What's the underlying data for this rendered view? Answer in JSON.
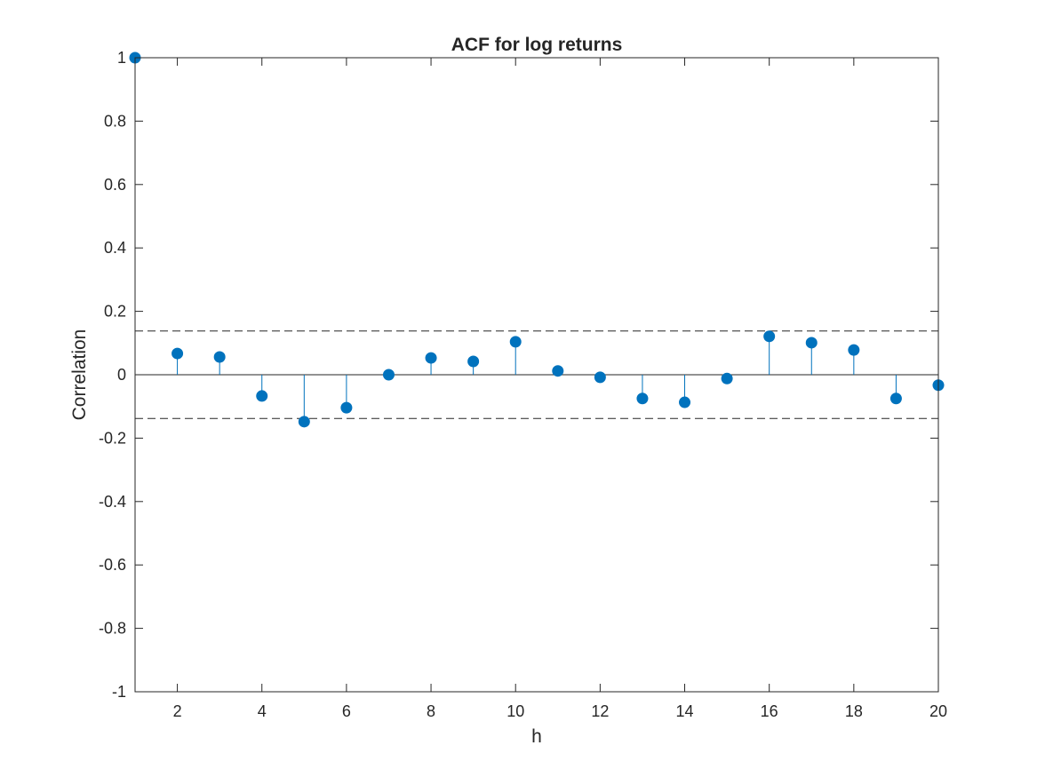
{
  "chart_data": {
    "type": "stem",
    "title": "ACF for log returns",
    "xlabel": "h",
    "ylabel": "Correlation",
    "xlim": [
      1,
      20
    ],
    "ylim": [
      -1,
      1
    ],
    "x_ticks": [
      2,
      4,
      6,
      8,
      10,
      12,
      14,
      16,
      18,
      20
    ],
    "y_ticks": [
      -1,
      -0.8,
      -0.6,
      -0.4,
      -0.2,
      0,
      0.2,
      0.4,
      0.6,
      0.8,
      1
    ],
    "y_tick_labels": [
      "-1",
      "-0.8",
      "-0.6",
      "-0.4",
      "-0.2",
      "0",
      "0.2",
      "0.4",
      "0.6",
      "0.8",
      "1"
    ],
    "x": [
      1,
      2,
      3,
      4,
      5,
      6,
      7,
      8,
      9,
      10,
      11,
      12,
      13,
      14,
      15,
      16,
      17,
      18,
      19,
      20
    ],
    "values": [
      1.0,
      0.067,
      0.056,
      -0.067,
      -0.148,
      -0.104,
      0.0,
      0.053,
      0.042,
      0.104,
      0.012,
      -0.008,
      -0.075,
      -0.087,
      -0.012,
      0.121,
      0.101,
      0.078,
      -0.075,
      -0.033
    ],
    "confidence_bounds": [
      0.138,
      -0.138
    ],
    "grid": false,
    "colors": {
      "stem": "#0072BD",
      "bounds": "#262626",
      "axis": "#262626"
    }
  }
}
